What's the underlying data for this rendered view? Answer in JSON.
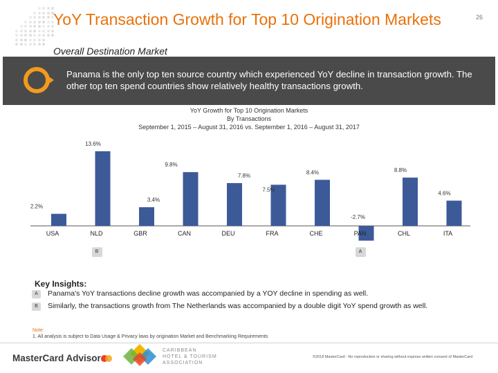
{
  "header": {
    "title": "YoY Transaction Growth for Top 10 Origination Markets",
    "page_number": "26",
    "subtitle": "Overall Destination Market"
  },
  "banner": {
    "text": "Panama is the only top ten source country which experienced YoY decline in transaction growth.  The other top ten spend countries show relatively healthy transactions growth."
  },
  "colors": {
    "accent_orange": "#e8710a",
    "banner_bg": "#4a4a4a",
    "bar": "#3d5a98"
  },
  "chart_data": {
    "type": "bar",
    "title": "YoY Growth for Top 10 Origination Markets",
    "subtitle": "By Transactions",
    "date_range": "September 1, 2015 – August 31, 2016 vs. September 1, 2016 – August 31, 2017",
    "categories": [
      "USA",
      "NLD",
      "GBR",
      "CAN",
      "DEU",
      "FRA",
      "CHE",
      "PAN",
      "CHL",
      "ITA"
    ],
    "values": [
      2.2,
      13.6,
      3.4,
      9.8,
      7.8,
      7.5,
      8.4,
      -2.7,
      8.8,
      4.6
    ],
    "value_labels": [
      "2.2%",
      "13.6%",
      "3.4%",
      "9.8%",
      "7.8%",
      "7.5%",
      "8.4%",
      "-2.7%",
      "8.8%",
      "4.6%"
    ],
    "ylim": [
      -3,
      14
    ],
    "grid": false
  },
  "markers": [
    {
      "label": "B",
      "category": "NLD"
    },
    {
      "label": "A",
      "category": "PAN"
    }
  ],
  "insights": {
    "heading": "Key Insights:",
    "items": [
      {
        "badge": "A",
        "text": "Panama's YoY transactions decline growth was accompanied by a YOY decline in spending as well."
      },
      {
        "badge": "B",
        "text": "Similarly, the transactions growth from The Netherlands was accompanied by a double digit YoY spend growth as well."
      }
    ]
  },
  "note": {
    "label": "Note:",
    "text": "1. All analysis is subject to Data Usage & Privacy laws by origination Market and Benchmarking Requirements"
  },
  "footer": {
    "brand": "MasterCard Advisors",
    "partner_line1": "CARIBBEAN",
    "partner_line2": "HOTEL & TOURISM",
    "partner_line3": "ASSOCIATION",
    "copyright": "©2018 MasterCard - No reproduction or sharing without express written consent of MasterCard"
  }
}
